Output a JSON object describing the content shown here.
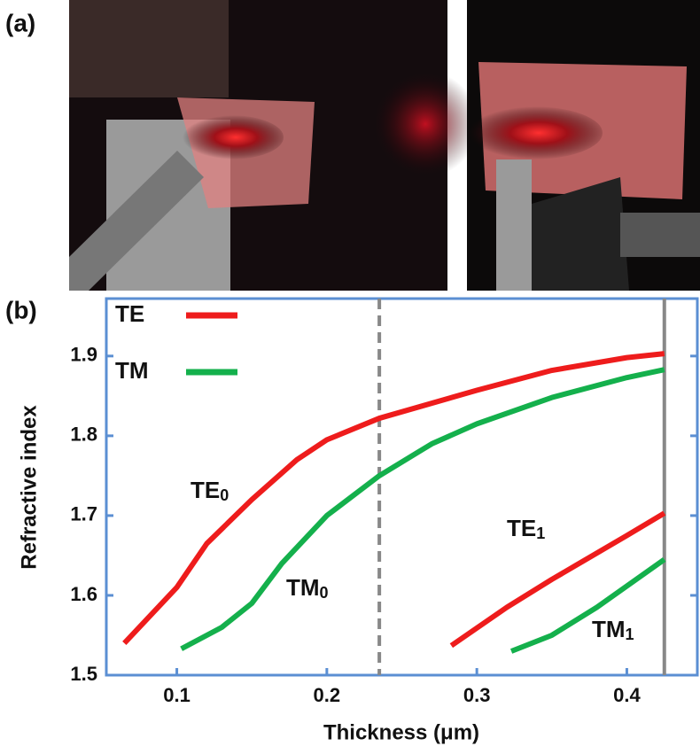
{
  "panel_labels": [
    "(a)",
    "(b)"
  ],
  "chart_data": {
    "type": "line",
    "xlabel": "Thickness (μm)",
    "ylabel": "Refractive index",
    "xlim": [
      0.053,
      0.447
    ],
    "ylim": [
      1.5,
      1.972
    ],
    "xticks": [
      0.1,
      0.2,
      0.3,
      0.4
    ],
    "yticks": [
      1.5,
      1.6,
      1.7,
      1.8,
      1.9
    ],
    "legend": "upper left",
    "series": [
      {
        "name": "TE",
        "color": "#ee1c1c",
        "x": [
          0.065,
          0.08,
          0.1,
          0.12,
          0.15,
          0.18,
          0.2,
          0.235,
          0.3,
          0.35,
          0.4,
          0.425,
          null,
          0.283,
          0.32,
          0.35,
          0.4,
          0.425
        ],
        "values": [
          1.54,
          1.57,
          1.61,
          1.665,
          1.72,
          1.77,
          1.795,
          1.822,
          1.857,
          1.882,
          1.898,
          1.903,
          null,
          1.537,
          1.585,
          1.62,
          1.675,
          1.703
        ]
      },
      {
        "name": "TM",
        "color": "#14b04c",
        "x": [
          0.103,
          0.13,
          0.15,
          0.17,
          0.2,
          0.235,
          0.27,
          0.3,
          0.35,
          0.4,
          0.425,
          null,
          0.323,
          0.35,
          0.38,
          0.425
        ],
        "values": [
          1.533,
          1.56,
          1.59,
          1.64,
          1.7,
          1.75,
          1.79,
          1.815,
          1.848,
          1.873,
          1.883,
          null,
          1.53,
          1.55,
          1.585,
          1.645
        ]
      }
    ],
    "annotations": [
      {
        "text": "TE",
        "sub": "0"
      },
      {
        "text": "TM",
        "sub": "0"
      },
      {
        "text": "TE",
        "sub": "1"
      },
      {
        "text": "TM",
        "sub": "1"
      }
    ],
    "vlines": [
      {
        "value": 0.235,
        "style": "dashed"
      },
      {
        "value": 0.425,
        "style": "solid"
      }
    ]
  }
}
